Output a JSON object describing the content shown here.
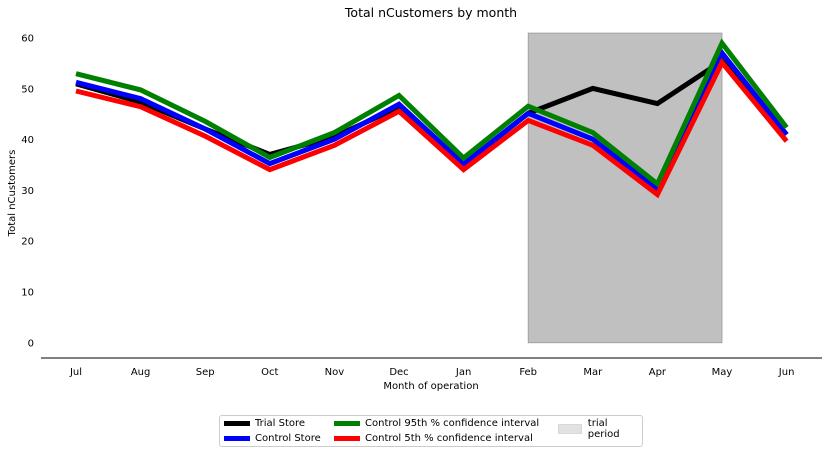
{
  "chart_data": {
    "type": "line",
    "title": "Total nCustomers by month",
    "xlabel": "Month of operation",
    "ylabel": "Total nCustomers",
    "categories": [
      "Jul",
      "Aug",
      "Sep",
      "Oct",
      "Nov",
      "Dec",
      "Jan",
      "Feb",
      "Mar",
      "Apr",
      "May",
      "Jun"
    ],
    "yticks": [
      0,
      10,
      20,
      30,
      40,
      50,
      60
    ],
    "ylim": [
      -3,
      62
    ],
    "grid": false,
    "legend_position": "bottom-center",
    "series": [
      {
        "name": "Trial Store",
        "color": "#000000",
        "values": [
          51,
          47.4,
          42.1,
          37.1,
          40.6,
          46.4,
          35.1,
          45.2,
          50.1,
          47.1,
          55.5,
          41
        ]
      },
      {
        "name": "Control Store",
        "color": "#0000ff",
        "values": [
          51.3,
          48.1,
          42.1,
          35.3,
          40.1,
          47,
          35.2,
          45.2,
          40.1,
          30.2,
          57.1,
          41
        ]
      },
      {
        "name": "Control 95th % confidence interval",
        "color": "#008000",
        "values": [
          53,
          49.8,
          43.6,
          36.5,
          41.4,
          48.7,
          36.4,
          46.6,
          41.4,
          31.3,
          59,
          42.4
        ]
      },
      {
        "name": "Control 5th % confidence interval",
        "color": "#ff0000",
        "values": [
          49.6,
          46.5,
          40.7,
          34.1,
          38.9,
          45.6,
          34.1,
          43.8,
          38.9,
          29.2,
          55.2,
          39.7
        ]
      }
    ],
    "shaded_region": {
      "name": "trial period",
      "x_start": "Feb",
      "x_end": "May",
      "y_range": [
        0,
        61
      ],
      "color": "#c0c0c0"
    }
  }
}
